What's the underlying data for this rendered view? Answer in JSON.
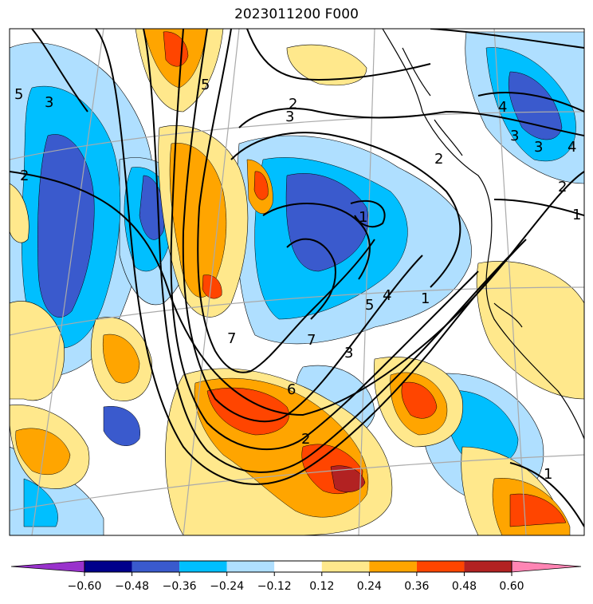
{
  "title": "2023011200 F000",
  "colorbar": {
    "ticks": [
      "−0.60",
      "−0.48",
      "−0.36",
      "−0.24",
      "−0.12",
      "0.12",
      "0.24",
      "0.36",
      "0.48",
      "0.60"
    ],
    "colors": [
      "#9932cc",
      "#00008b",
      "#3a5acd",
      "#00bfff",
      "#afdfff",
      "#ffffff",
      "#ffe88c",
      "#ffa500",
      "#ff4500",
      "#b22222",
      "#ff85b4"
    ]
  },
  "fill_colors": {
    "n060": "#9932cc",
    "n048": "#00008b",
    "n036": "#3a5acd",
    "n024": "#00bfff",
    "n012": "#afdfff",
    "p012": "#ffe88c",
    "p024": "#ffa500",
    "p036": "#ff4500",
    "p048": "#b22222",
    "p060": "#ff85b4"
  },
  "contour_labels": [
    "5",
    "3",
    "2",
    "3",
    "2",
    "3",
    "5",
    "3",
    "2",
    "2",
    "4",
    "4",
    "1",
    "1",
    "7",
    "7",
    "5",
    "4",
    "1",
    "3",
    "6",
    "2",
    "1"
  ]
}
